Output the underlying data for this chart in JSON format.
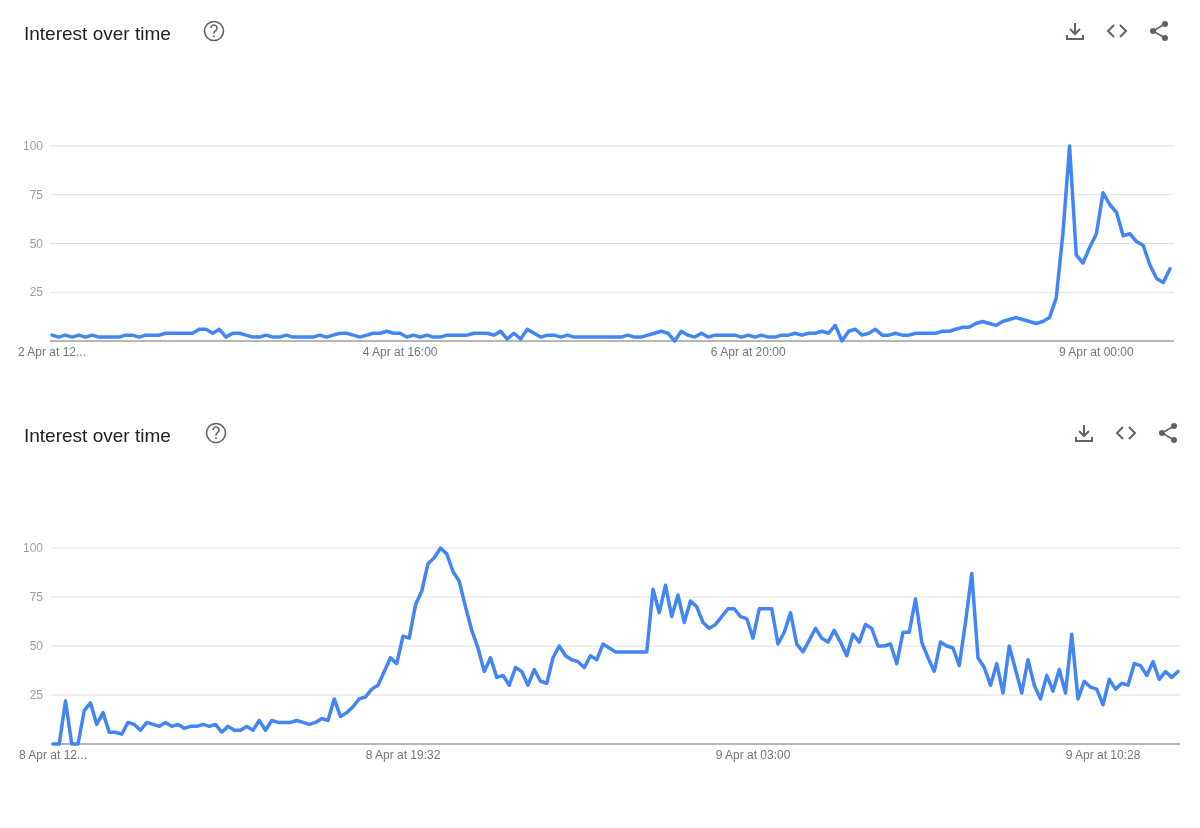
{
  "chart_data": [
    {
      "type": "line",
      "title": "Interest over time",
      "color": "#4285f4",
      "grid": "y",
      "line_style": "solid",
      "marker": "none",
      "categories": [
        "2 Apr at 12...",
        null,
        null,
        null,
        null,
        null,
        null,
        null,
        null,
        null,
        null,
        null,
        null,
        null,
        null,
        null,
        null,
        null,
        null,
        null,
        null,
        null,
        null,
        null,
        null,
        null,
        null,
        null,
        null,
        null,
        null,
        null,
        null,
        null,
        null,
        null,
        null,
        null,
        null,
        null,
        null,
        null,
        null,
        null,
        null,
        null,
        null,
        null,
        null,
        null,
        null,
        null,
        "4 Apr at 16:00",
        null,
        null,
        null,
        null,
        null,
        null,
        null,
        null,
        null,
        null,
        null,
        null,
        null,
        null,
        null,
        null,
        null,
        null,
        null,
        null,
        null,
        null,
        null,
        null,
        null,
        null,
        null,
        null,
        null,
        null,
        null,
        null,
        null,
        null,
        null,
        null,
        null,
        null,
        null,
        null,
        null,
        null,
        null,
        null,
        null,
        null,
        null,
        null,
        null,
        null,
        null,
        "6 Apr at 20:00",
        null,
        null,
        null,
        null,
        null,
        null,
        null,
        null,
        null,
        null,
        null,
        null,
        null,
        null,
        null,
        null,
        null,
        null,
        null,
        null,
        null,
        null,
        null,
        null,
        null,
        null,
        null,
        null,
        null,
        null,
        null,
        null,
        null,
        null,
        null,
        null,
        null,
        null,
        null,
        null,
        null,
        null,
        null,
        null,
        null,
        null,
        null,
        null,
        null,
        null,
        null,
        "9 Apr at 00:00",
        null,
        null,
        null,
        null,
        null,
        null,
        null,
        null,
        null,
        null,
        null
      ],
      "ylim": [
        0,
        100
      ],
      "yticks": [
        {
          "value": 0,
          "label": null
        },
        25,
        50,
        75,
        100
      ],
      "values": [
        3,
        2,
        3,
        2,
        3,
        2,
        3,
        2,
        2,
        2,
        2,
        3,
        3,
        2,
        3,
        3,
        3,
        4,
        4,
        4,
        4,
        4,
        6,
        6,
        4,
        6,
        2,
        4,
        4,
        3,
        2,
        2,
        3,
        2,
        2,
        3,
        2,
        2,
        2,
        2,
        3,
        2,
        3,
        4,
        4,
        3,
        2,
        3,
        4,
        4,
        5,
        4,
        4,
        2,
        3,
        2,
        3,
        2,
        2,
        3,
        3,
        3,
        3,
        4,
        4,
        4,
        3,
        5,
        1,
        4,
        1,
        6,
        4,
        2,
        3,
        3,
        2,
        3,
        2,
        2,
        2,
        2,
        2,
        2,
        2,
        2,
        3,
        2,
        2,
        3,
        4,
        5,
        4,
        0,
        5,
        3,
        2,
        4,
        2,
        3,
        3,
        3,
        3,
        2,
        3,
        2,
        3,
        2,
        2,
        3,
        3,
        4,
        3,
        4,
        4,
        5,
        4,
        8,
        0,
        5,
        6,
        3,
        4,
        6,
        3,
        3,
        4,
        3,
        3,
        4,
        4,
        4,
        4,
        5,
        5,
        6,
        7,
        7,
        9,
        10,
        9,
        8,
        10,
        11,
        12,
        11,
        10,
        9,
        10,
        12,
        22,
        55,
        100,
        44,
        40,
        48,
        55,
        76,
        70,
        66,
        54,
        55,
        51,
        49,
        39,
        32,
        30,
        37
      ]
    },
    {
      "type": "line",
      "title": "Interest over time",
      "color": "#4285f4",
      "grid": "y",
      "line_style": "solid",
      "marker": "none",
      "categories": [
        "8 Apr at 12...",
        null,
        null,
        null,
        null,
        null,
        null,
        null,
        null,
        null,
        null,
        null,
        null,
        null,
        null,
        null,
        null,
        null,
        null,
        null,
        null,
        null,
        null,
        null,
        null,
        null,
        null,
        null,
        null,
        null,
        null,
        null,
        null,
        null,
        null,
        null,
        null,
        null,
        null,
        null,
        null,
        null,
        null,
        null,
        null,
        null,
        null,
        null,
        null,
        null,
        null,
        null,
        null,
        null,
        null,
        null,
        "8 Apr at 19:32",
        null,
        null,
        null,
        null,
        null,
        null,
        null,
        null,
        null,
        null,
        null,
        null,
        null,
        null,
        null,
        null,
        null,
        null,
        null,
        null,
        null,
        null,
        null,
        null,
        null,
        null,
        null,
        null,
        null,
        null,
        null,
        null,
        null,
        null,
        null,
        null,
        null,
        null,
        null,
        null,
        null,
        null,
        null,
        null,
        null,
        null,
        null,
        null,
        null,
        null,
        null,
        null,
        null,
        null,
        null,
        "9 Apr at 03:00",
        null,
        null,
        null,
        null,
        null,
        null,
        null,
        null,
        null,
        null,
        null,
        null,
        null,
        null,
        null,
        null,
        null,
        null,
        null,
        null,
        null,
        null,
        null,
        null,
        null,
        null,
        null,
        null,
        null,
        null,
        null,
        null,
        null,
        null,
        null,
        null,
        null,
        null,
        null,
        null,
        null,
        null,
        null,
        null,
        null,
        null,
        null,
        null,
        null,
        null,
        null,
        null,
        null,
        null,
        null,
        "9 Apr at 10:28",
        null,
        null,
        null,
        null,
        null,
        null,
        null,
        null,
        null,
        null,
        null,
        null
      ],
      "ylim": [
        0,
        100
      ],
      "yticks": [
        {
          "value": 0,
          "label": null
        },
        25,
        50,
        75,
        100
      ],
      "values": [
        0,
        0,
        22,
        0,
        0,
        17,
        21,
        10,
        16,
        6,
        6,
        5,
        11,
        10,
        7,
        11,
        10,
        9,
        11,
        9,
        10,
        8,
        9,
        9,
        10,
        9,
        10,
        6,
        9,
        7,
        7,
        9,
        7,
        12,
        7,
        12,
        11,
        11,
        11,
        12,
        11,
        10,
        11,
        13,
        12,
        23,
        14,
        16,
        19,
        23,
        24,
        28,
        30,
        37,
        44,
        41,
        55,
        54,
        71,
        78,
        92,
        95,
        100,
        97,
        88,
        83,
        70,
        58,
        49,
        37,
        44,
        34,
        35,
        30,
        39,
        37,
        30,
        38,
        32,
        31,
        44,
        50,
        45,
        43,
        42,
        39,
        45,
        43,
        51,
        49,
        47,
        47,
        47,
        47,
        47,
        47,
        79,
        67,
        81,
        65,
        76,
        62,
        73,
        70,
        62,
        59,
        61,
        65,
        69,
        69,
        65,
        64,
        54,
        69,
        69,
        69,
        51,
        57,
        67,
        51,
        47,
        53,
        59,
        54,
        52,
        58,
        52,
        45,
        56,
        52,
        61,
        59,
        50,
        50,
        51,
        41,
        57,
        57,
        74,
        52,
        44,
        37,
        52,
        50,
        49,
        40,
        62,
        87,
        44,
        39,
        30,
        41,
        26,
        50,
        38,
        26,
        43,
        30,
        23,
        35,
        27,
        38,
        26,
        56,
        23,
        32,
        29,
        28,
        20,
        33,
        28,
        31,
        30,
        41,
        40,
        35,
        42,
        33,
        37,
        34,
        37
      ]
    }
  ]
}
